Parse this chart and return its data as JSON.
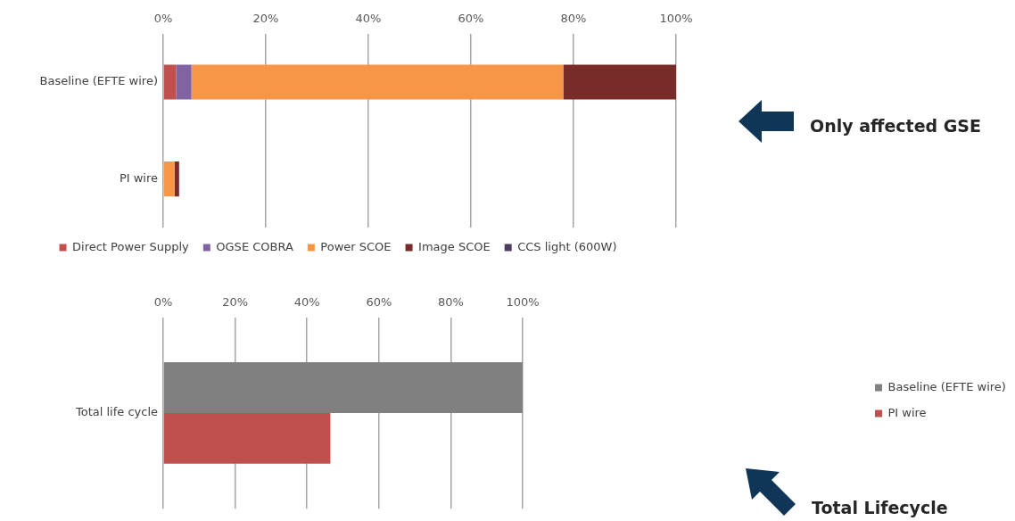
{
  "chart_data": [
    {
      "type": "bar",
      "orientation": "horizontal",
      "stacked": true,
      "categories": [
        "Baseline (EFTE wire)",
        "PI wire"
      ],
      "series": [
        {
          "name": "Direct Power Supply",
          "color": "#c0504d",
          "values": [
            2.5,
            0
          ]
        },
        {
          "name": "OGSE COBRA",
          "color": "#8064a2",
          "values": [
            3,
            0
          ]
        },
        {
          "name": "Power SCOE",
          "color": "#f79646",
          "values": [
            72.5,
            2.2
          ]
        },
        {
          "name": "Image SCOE",
          "color": "#772c2a",
          "values": [
            22,
            0.9
          ]
        },
        {
          "name": "CCS light (600W)",
          "color": "#4d3b62",
          "values": [
            0,
            0
          ]
        }
      ],
      "xlim": [
        0,
        100
      ],
      "xticks": [
        {
          "value": 0,
          "label": "0%"
        },
        {
          "value": 20,
          "label": "20%"
        },
        {
          "value": 40,
          "label": "40%"
        },
        {
          "value": 60,
          "label": "60%"
        },
        {
          "value": 80,
          "label": "80%"
        },
        {
          "value": 100,
          "label": "100%"
        }
      ],
      "grid": "x",
      "legend": "bottom",
      "annotations": [
        "Only affected GSE"
      ]
    },
    {
      "type": "bar",
      "orientation": "horizontal",
      "categories": [
        "Total life cycle"
      ],
      "series": [
        {
          "name": "Baseline (EFTE wire)",
          "color": "#808080",
          "values": [
            100
          ]
        },
        {
          "name": "PI wire",
          "color": "#c0504d",
          "values": [
            46.5
          ]
        }
      ],
      "xlim": [
        0,
        100
      ],
      "xticks": [
        {
          "value": 0,
          "label": "0%"
        },
        {
          "value": 20,
          "label": "20%"
        },
        {
          "value": 40,
          "label": "40%"
        },
        {
          "value": 60,
          "label": "60%"
        },
        {
          "value": 80,
          "label": "80%"
        },
        {
          "value": 100,
          "label": "100%"
        }
      ],
      "grid": "x",
      "legend": "right",
      "annotations": [
        "Total Lifecycle"
      ]
    }
  ]
}
